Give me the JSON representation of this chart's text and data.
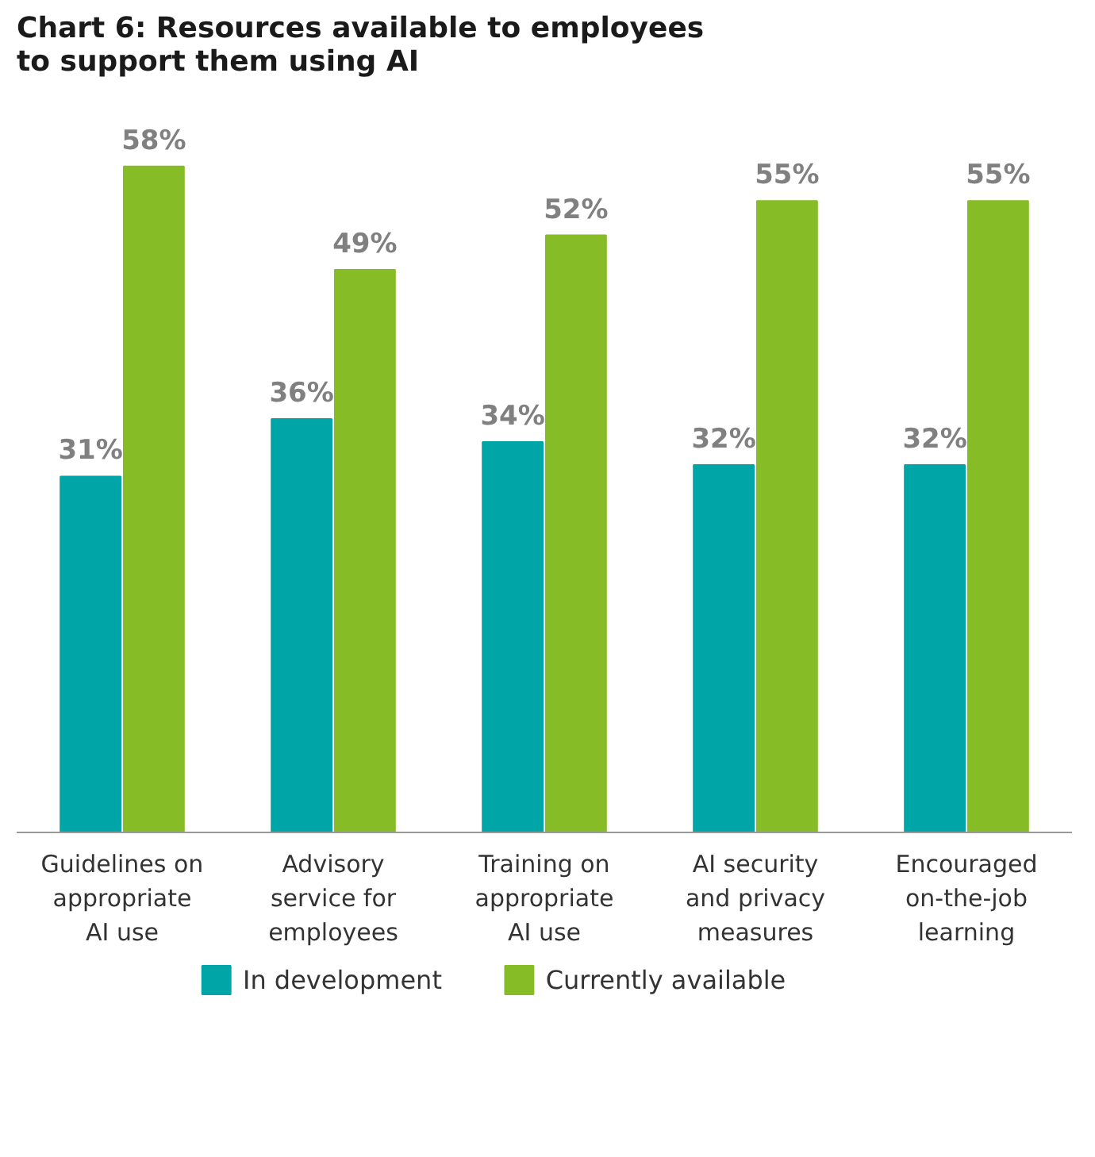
{
  "chart_data": {
    "type": "bar",
    "title": "Chart 6: Resources available to employees\nto support them using AI",
    "categories": [
      "Guidelines on\nappropriate\nAI use",
      "Advisory\nservice for\nemployees",
      "Training on\nappropriate\nAI use",
      "AI security\nand privacy\nmeasures",
      "Encouraged\non-the-job\nlearning"
    ],
    "series": [
      {
        "name": "In development",
        "color": "#00a5a8",
        "values": [
          31,
          36,
          34,
          32,
          32
        ],
        "value_labels": [
          "31%",
          "36%",
          "34%",
          "32%",
          "32%"
        ]
      },
      {
        "name": "Currently available",
        "color": "#86bc25",
        "values": [
          58,
          49,
          52,
          55,
          55
        ],
        "value_labels": [
          "58%",
          "49%",
          "52%",
          "55%",
          "55%"
        ]
      }
    ],
    "legend": "bottom",
    "grid": false
  }
}
